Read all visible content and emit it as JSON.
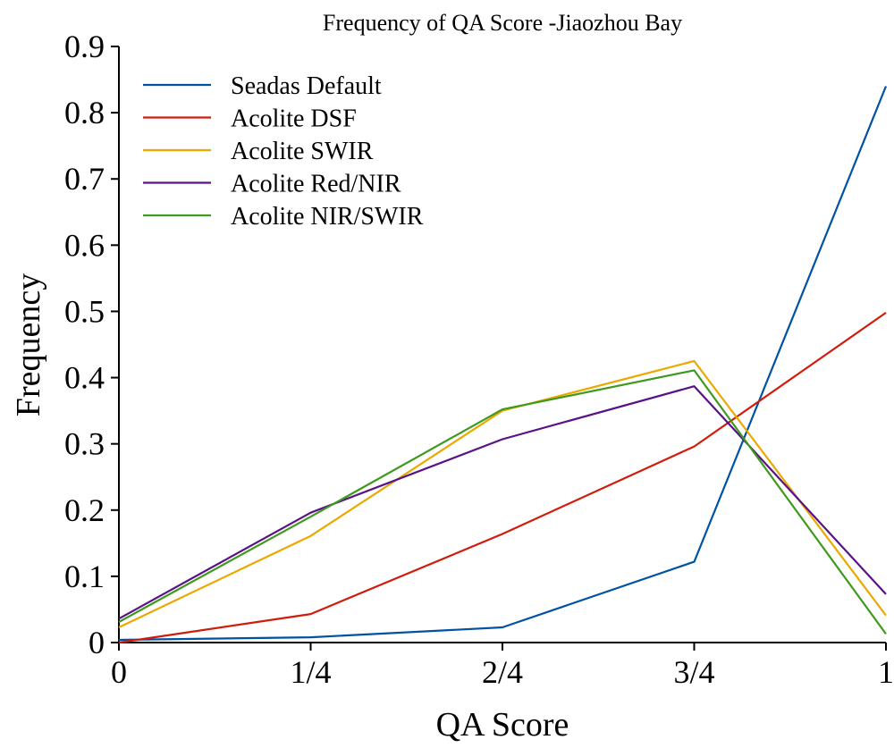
{
  "chart_data": {
    "type": "line",
    "title": "Frequency of QA Score -Jiaozhou Bay",
    "xlabel": "QA Score",
    "ylabel": "Frequency",
    "categories": [
      "0",
      "1/4",
      "2/4",
      "3/4",
      "1"
    ],
    "x": [
      0,
      0.25,
      0.5,
      0.75,
      1
    ],
    "ylim": [
      0,
      0.9
    ],
    "yticks": [
      "0",
      "0.1",
      "0.2",
      "0.3",
      "0.4",
      "0.5",
      "0.6",
      "0.7",
      "0.8",
      "0.9"
    ],
    "grid": false,
    "legend_position": "top-left",
    "series": [
      {
        "name": "Seadas Default",
        "color": "#0052a3",
        "values": [
          0.004,
          0.008,
          0.023,
          0.122,
          0.84
        ]
      },
      {
        "name": "Acolite DSF",
        "color": "#d01c0c",
        "values": [
          0.0,
          0.043,
          0.164,
          0.296,
          0.498
        ]
      },
      {
        "name": "Acolite SWIR",
        "color": "#eba800",
        "values": [
          0.023,
          0.161,
          0.35,
          0.425,
          0.041
        ]
      },
      {
        "name": "Acolite Red/NIR",
        "color": "#5a1288",
        "values": [
          0.036,
          0.196,
          0.307,
          0.387,
          0.073
        ]
      },
      {
        "name": "Acolite NIR/SWIR",
        "color": "#3e9a1c",
        "values": [
          0.031,
          0.19,
          0.352,
          0.411,
          0.013
        ]
      }
    ]
  }
}
